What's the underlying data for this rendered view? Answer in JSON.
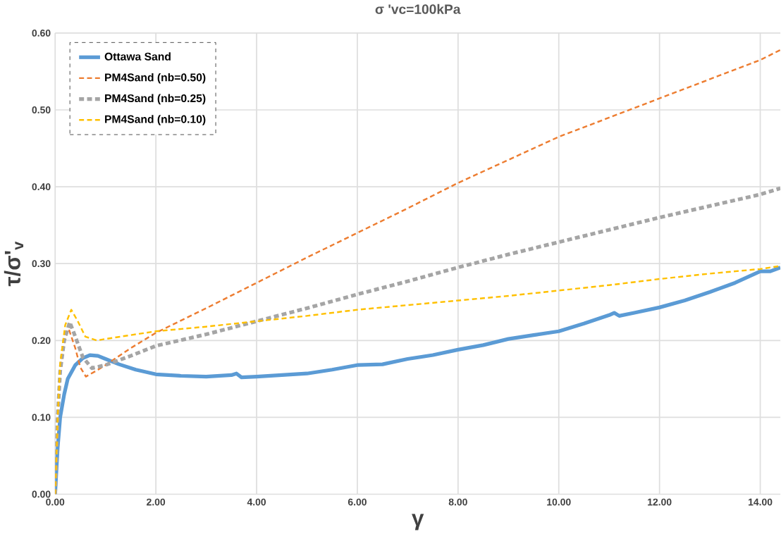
{
  "chart_data": {
    "type": "line",
    "title": "σ 'vc=100kPa",
    "xlabel": "γ",
    "ylabel": "τ/σ'$_{v}$",
    "xlim": [
      0,
      14.4
    ],
    "ylim": [
      0,
      0.6
    ],
    "xticks": [
      {
        "value": 0,
        "label": "0.00"
      },
      {
        "value": 2,
        "label": "2.00"
      },
      {
        "value": 4,
        "label": "4.00"
      },
      {
        "value": 6,
        "label": "6.00"
      },
      {
        "value": 8,
        "label": "8.00"
      },
      {
        "value": 10,
        "label": "10.00"
      },
      {
        "value": 12,
        "label": "12.00"
      },
      {
        "value": 14,
        "label": "14.00"
      }
    ],
    "yticks": [
      {
        "value": 0,
        "label": "0.00"
      },
      {
        "value": 0.1,
        "label": "0.10"
      },
      {
        "value": 0.2,
        "label": "0.20"
      },
      {
        "value": 0.3,
        "label": "0.30"
      },
      {
        "value": 0.4,
        "label": "0.40"
      },
      {
        "value": 0.5,
        "label": "0.50"
      },
      {
        "value": 0.6,
        "label": "0.60"
      }
    ],
    "grid": true,
    "legend": "top left",
    "marker": "none",
    "series": [
      {
        "name": "Ottawa Sand",
        "color": "#5b9bd5",
        "line_style": "solid",
        "x": [
          0,
          0.05,
          0.1,
          0.18,
          0.25,
          0.4,
          0.55,
          0.69,
          0.85,
          1.0,
          1.27,
          1.6,
          2.0,
          2.5,
          3.0,
          3.5,
          3.6,
          3.7,
          4.0,
          4.5,
          5.0,
          5.5,
          6.0,
          6.5,
          7.0,
          7.5,
          8.0,
          8.5,
          9.0,
          9.5,
          10.0,
          10.5,
          11.0,
          11.1,
          11.2,
          11.5,
          12.0,
          12.5,
          13.0,
          13.5,
          14.0,
          14.2,
          14.4
        ],
        "values": [
          0,
          0.06,
          0.1,
          0.13,
          0.15,
          0.168,
          0.177,
          0.181,
          0.18,
          0.176,
          0.169,
          0.162,
          0.156,
          0.154,
          0.153,
          0.155,
          0.157,
          0.152,
          0.153,
          0.155,
          0.157,
          0.162,
          0.168,
          0.169,
          0.176,
          0.181,
          0.188,
          0.194,
          0.202,
          0.207,
          0.212,
          0.222,
          0.233,
          0.236,
          0.232,
          0.236,
          0.243,
          0.252,
          0.263,
          0.275,
          0.29,
          0.29,
          0.295
        ]
      },
      {
        "name": "PM4Sand (nb=0.50)",
        "color": "#ed7d31",
        "line_style": "dashed",
        "x": [
          0,
          0.05,
          0.1,
          0.18,
          0.27,
          0.4,
          0.5,
          0.61,
          0.8,
          1.0,
          1.5,
          2.0,
          3.0,
          4.0,
          5.0,
          6.0,
          7.0,
          8.0,
          9.0,
          10.0,
          11.0,
          12.0,
          13.0,
          14.0,
          14.4
        ],
        "values": [
          0,
          0.1,
          0.16,
          0.2,
          0.215,
          0.19,
          0.165,
          0.153,
          0.16,
          0.168,
          0.19,
          0.21,
          0.242,
          0.275,
          0.308,
          0.34,
          0.372,
          0.405,
          0.435,
          0.465,
          0.49,
          0.515,
          0.54,
          0.565,
          0.578
        ]
      },
      {
        "name": "PM4Sand (nb=0.25)",
        "color": "#a5a5a5",
        "line_style": "dashed",
        "x": [
          0,
          0.05,
          0.1,
          0.18,
          0.29,
          0.4,
          0.55,
          0.73,
          1.0,
          1.5,
          2.0,
          3.0,
          4.0,
          5.0,
          6.0,
          7.0,
          8.0,
          9.0,
          10.0,
          11.0,
          12.0,
          13.0,
          14.0,
          14.4
        ],
        "values": [
          0,
          0.1,
          0.16,
          0.2,
          0.224,
          0.205,
          0.178,
          0.164,
          0.168,
          0.18,
          0.193,
          0.208,
          0.225,
          0.242,
          0.26,
          0.277,
          0.295,
          0.312,
          0.328,
          0.344,
          0.36,
          0.375,
          0.39,
          0.398
        ]
      },
      {
        "name": "PM4Sand (nb=0.10)",
        "color": "#ffc000",
        "line_style": "dashed",
        "x": [
          0,
          0.05,
          0.1,
          0.2,
          0.32,
          0.45,
          0.6,
          0.83,
          1.0,
          1.5,
          2.0,
          3.0,
          4.0,
          5.0,
          6.0,
          7.0,
          8.0,
          9.0,
          10.0,
          11.0,
          12.0,
          13.0,
          14.0,
          14.4
        ],
        "values": [
          0,
          0.1,
          0.17,
          0.22,
          0.24,
          0.225,
          0.205,
          0.2,
          0.202,
          0.207,
          0.212,
          0.218,
          0.225,
          0.232,
          0.24,
          0.246,
          0.252,
          0.258,
          0.265,
          0.272,
          0.28,
          0.287,
          0.293,
          0.297
        ]
      }
    ]
  }
}
